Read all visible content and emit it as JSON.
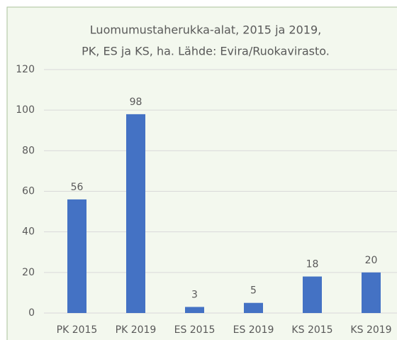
{
  "chart_data": {
    "type": "bar",
    "title": [
      "Luomumustaherukka-alat, 2015 ja 2019,",
      "PK, ES ja KS, ha. Lähde: Evira/Ruokavirasto."
    ],
    "categories": [
      "PK 2015",
      "PK 2019",
      "ES 2015",
      "ES 2019",
      "KS 2015",
      "KS 2019"
    ],
    "values": [
      56,
      98,
      3,
      5,
      18,
      20
    ],
    "color": "#4472c4",
    "ylim": [
      0,
      120
    ],
    "yticks": [
      0,
      20,
      40,
      60,
      80,
      100,
      120
    ],
    "grid": true
  }
}
